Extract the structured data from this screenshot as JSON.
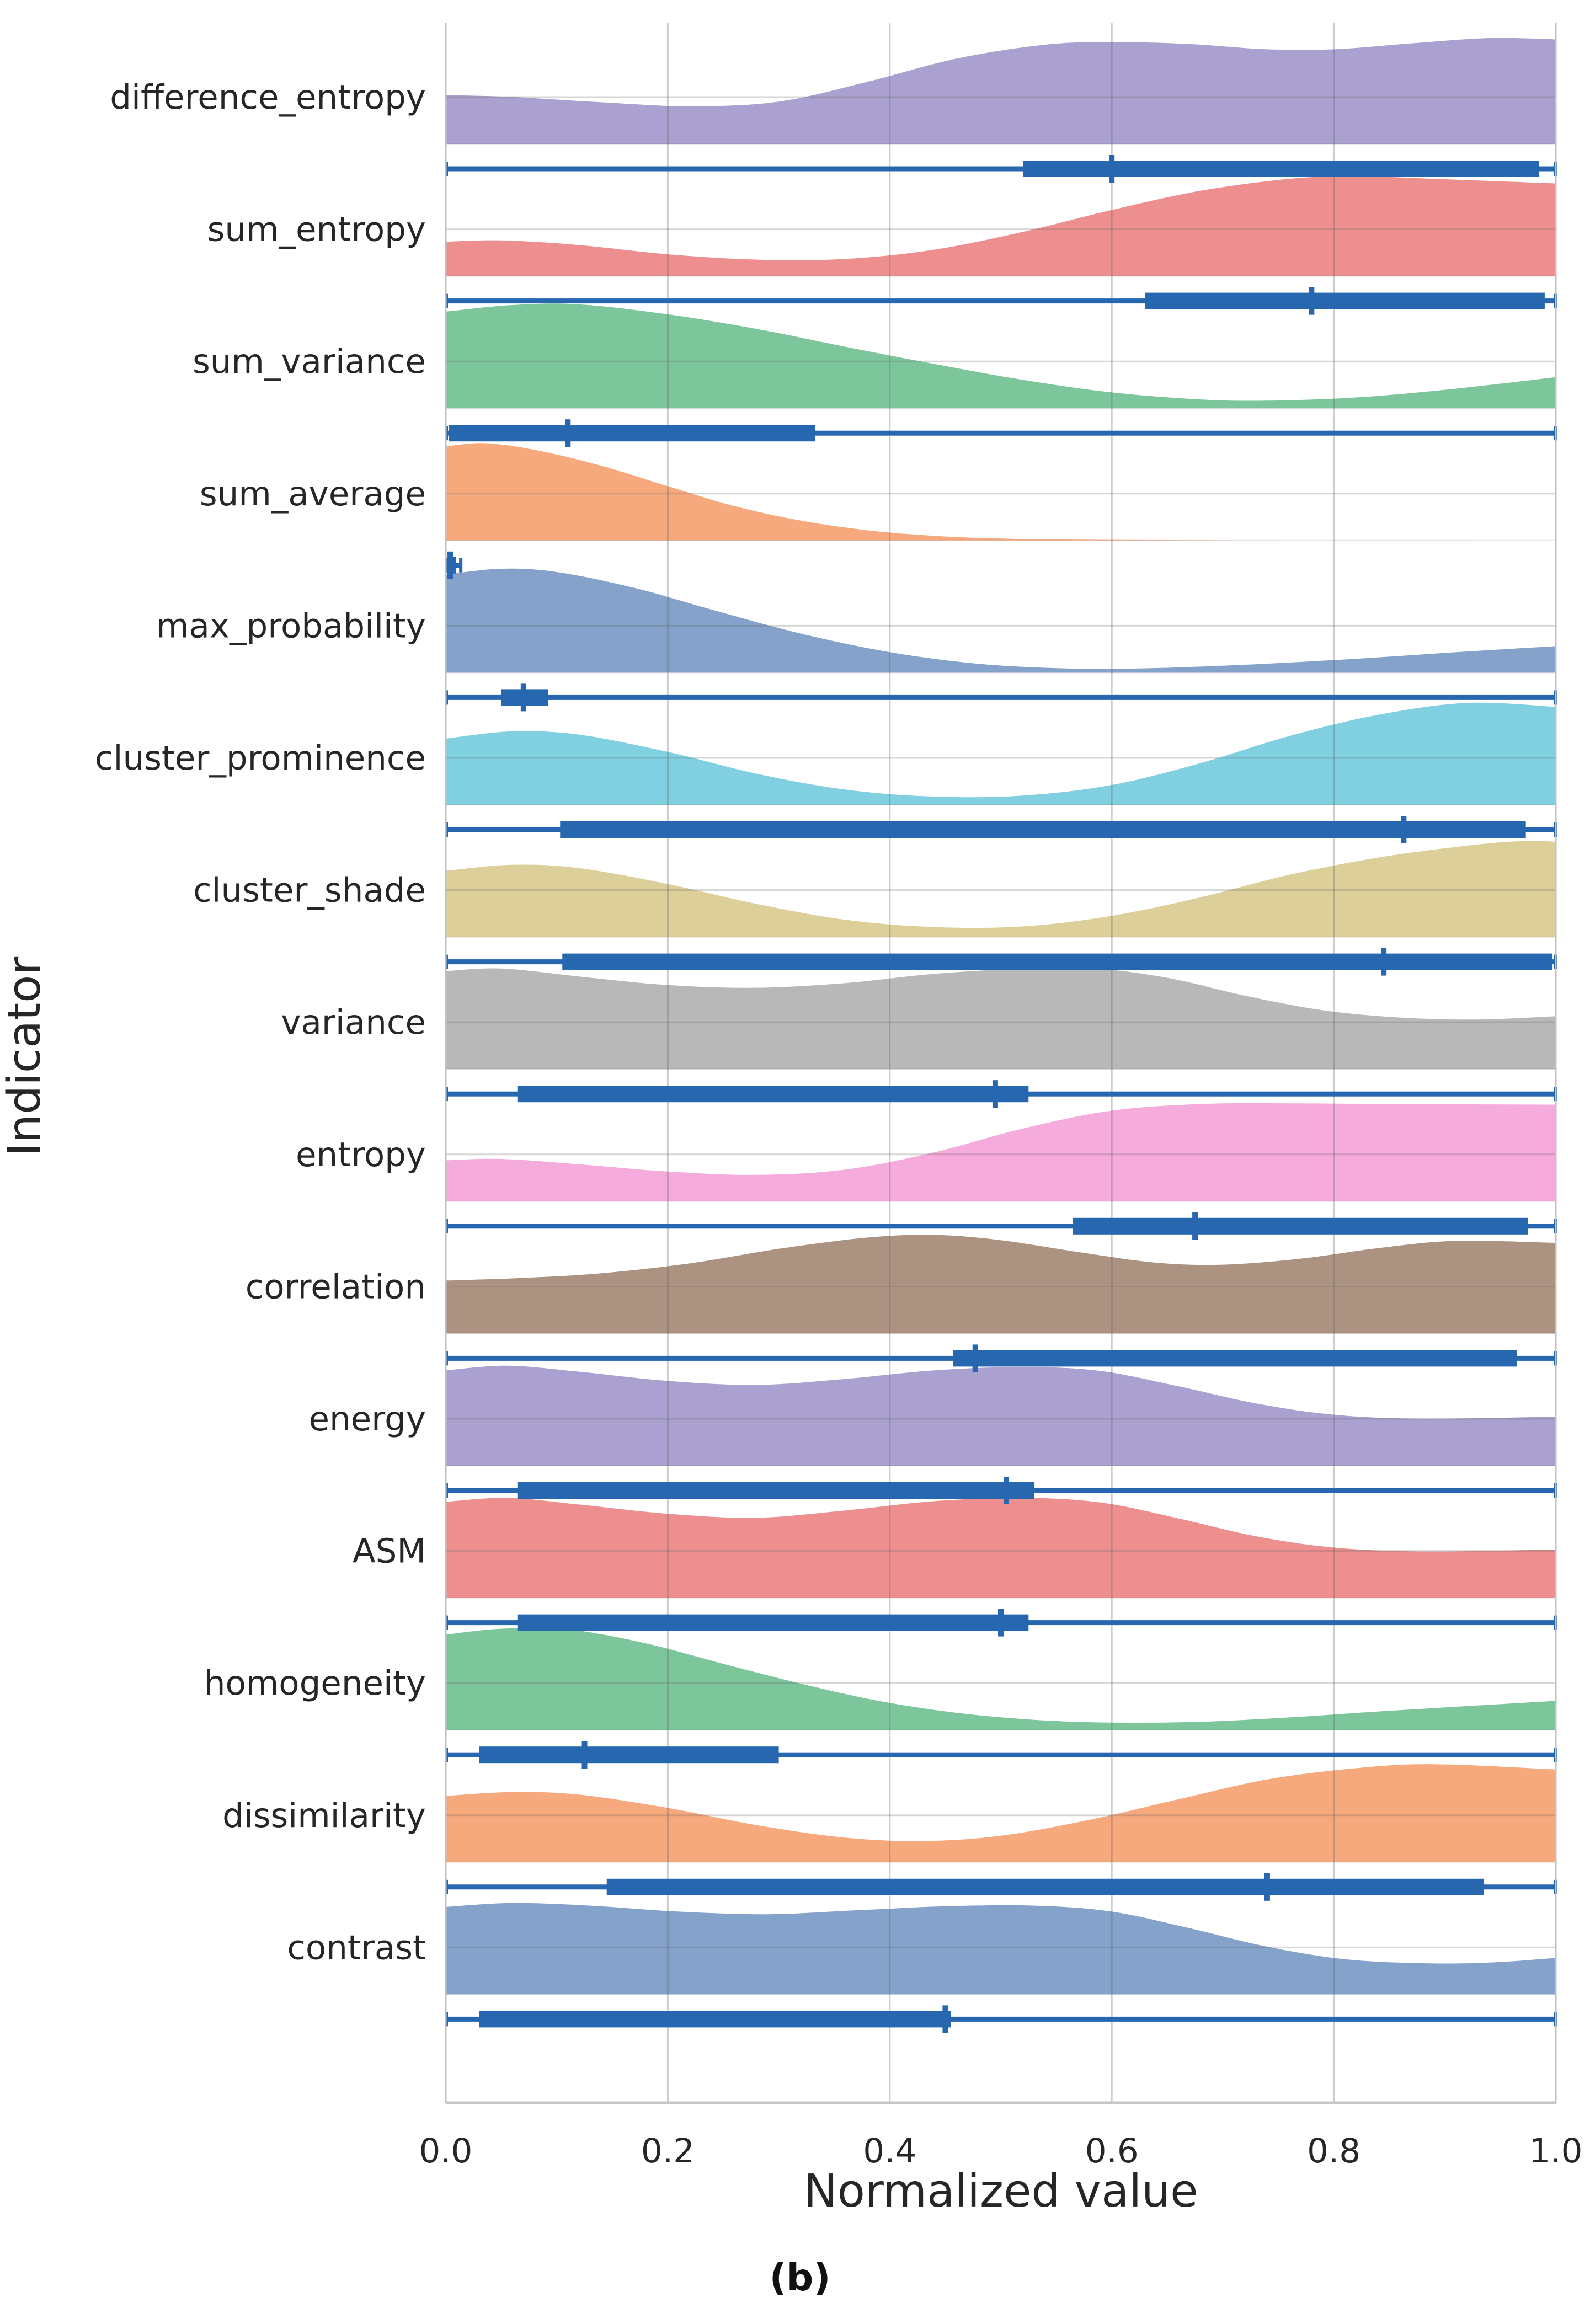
{
  "chart_data": {
    "type": "area",
    "variant": "ridgeline-with-range-bars",
    "title": "",
    "xlabel": "Normalized value",
    "ylabel": "Indicator",
    "caption": "(b)",
    "xlim": [
      0,
      1
    ],
    "x_ticks": [
      "0.0",
      "0.2",
      "0.4",
      "0.6",
      "0.8",
      "1.0"
    ],
    "x_tick_values": [
      0.0,
      0.2,
      0.4,
      0.6,
      0.8,
      1.0
    ],
    "grid": true,
    "legend": false,
    "box_color": "#2767b0",
    "rows": [
      {
        "label": "difference_entropy",
        "fill_color": "#aba1d0",
        "density": [
          [
            0,
            0.37
          ],
          [
            0.06,
            0.355
          ],
          [
            0.14,
            0.315
          ],
          [
            0.22,
            0.285
          ],
          [
            0.3,
            0.32
          ],
          [
            0.38,
            0.47
          ],
          [
            0.46,
            0.645
          ],
          [
            0.54,
            0.75
          ],
          [
            0.6,
            0.77
          ],
          [
            0.67,
            0.755
          ],
          [
            0.74,
            0.715
          ],
          [
            0.8,
            0.715
          ],
          [
            0.87,
            0.76
          ],
          [
            0.94,
            0.8
          ],
          [
            1,
            0.79
          ]
        ],
        "box": {
          "whisker_lo": 0.0,
          "q1": 0.52,
          "median": 0.6,
          "q3": 0.985,
          "whisker_hi": 1.0
        }
      },
      {
        "label": "sum_entropy",
        "fill_color": "#ee8f8f",
        "density": [
          [
            0,
            0.26
          ],
          [
            0.05,
            0.27
          ],
          [
            0.12,
            0.235
          ],
          [
            0.2,
            0.165
          ],
          [
            0.28,
            0.125
          ],
          [
            0.36,
            0.13
          ],
          [
            0.44,
            0.2
          ],
          [
            0.52,
            0.335
          ],
          [
            0.6,
            0.5
          ],
          [
            0.68,
            0.645
          ],
          [
            0.76,
            0.735
          ],
          [
            0.82,
            0.755
          ],
          [
            0.89,
            0.735
          ],
          [
            1,
            0.7
          ]
        ],
        "box": {
          "whisker_lo": 0.0,
          "q1": 0.63,
          "median": 0.78,
          "q3": 0.99,
          "whisker_hi": 1.0
        }
      },
      {
        "label": "sum_variance",
        "fill_color": "#7dc69c",
        "density": [
          [
            0,
            0.73
          ],
          [
            0.06,
            0.78
          ],
          [
            0.12,
            0.785
          ],
          [
            0.2,
            0.71
          ],
          [
            0.28,
            0.6
          ],
          [
            0.36,
            0.465
          ],
          [
            0.44,
            0.335
          ],
          [
            0.52,
            0.215
          ],
          [
            0.6,
            0.12
          ],
          [
            0.68,
            0.067
          ],
          [
            0.74,
            0.058
          ],
          [
            0.82,
            0.082
          ],
          [
            0.9,
            0.14
          ],
          [
            1,
            0.235
          ]
        ],
        "box": {
          "whisker_lo": 0.0,
          "q1": 0.003,
          "median": 0.11,
          "q3": 0.333,
          "whisker_hi": 1.0
        }
      },
      {
        "label": "sum_average",
        "fill_color": "#f7a97e",
        "density": [
          [
            0,
            0.71
          ],
          [
            0.035,
            0.735
          ],
          [
            0.08,
            0.685
          ],
          [
            0.14,
            0.565
          ],
          [
            0.2,
            0.41
          ],
          [
            0.26,
            0.26
          ],
          [
            0.32,
            0.15
          ],
          [
            0.38,
            0.077
          ],
          [
            0.44,
            0.035
          ],
          [
            0.5,
            0.015
          ],
          [
            0.58,
            0.006
          ],
          [
            0.68,
            0.002
          ],
          [
            0.78,
            0
          ],
          [
            1,
            0
          ]
        ],
        "box": {
          "whisker_lo": 0.0,
          "q1": 0.001,
          "median": 0.004,
          "q3": 0.009,
          "whisker_hi": 0.014
        }
      },
      {
        "label": "max_probability",
        "fill_color": "#84a2ca",
        "density": [
          [
            0,
            0.74
          ],
          [
            0.05,
            0.785
          ],
          [
            0.1,
            0.76
          ],
          [
            0.17,
            0.64
          ],
          [
            0.24,
            0.475
          ],
          [
            0.32,
            0.295
          ],
          [
            0.4,
            0.155
          ],
          [
            0.48,
            0.067
          ],
          [
            0.56,
            0.032
          ],
          [
            0.63,
            0.033
          ],
          [
            0.72,
            0.06
          ],
          [
            0.82,
            0.105
          ],
          [
            0.92,
            0.16
          ],
          [
            1,
            0.2
          ]
        ],
        "box": {
          "whisker_lo": 0.0,
          "q1": 0.05,
          "median": 0.07,
          "q3": 0.092,
          "whisker_hi": 1.0
        }
      },
      {
        "label": "cluster_prominence",
        "fill_color": "#80d0e1",
        "density": [
          [
            0,
            0.5
          ],
          [
            0.06,
            0.555
          ],
          [
            0.12,
            0.53
          ],
          [
            0.2,
            0.4
          ],
          [
            0.28,
            0.235
          ],
          [
            0.36,
            0.115
          ],
          [
            0.44,
            0.062
          ],
          [
            0.52,
            0.07
          ],
          [
            0.6,
            0.15
          ],
          [
            0.68,
            0.315
          ],
          [
            0.76,
            0.52
          ],
          [
            0.84,
            0.68
          ],
          [
            0.92,
            0.77
          ],
          [
            1,
            0.74
          ]
        ],
        "box": {
          "whisker_lo": 0.0,
          "q1": 0.103,
          "median": 0.863,
          "q3": 0.973,
          "whisker_hi": 1.0
        }
      },
      {
        "label": "cluster_shade",
        "fill_color": "#dccf9a",
        "density": [
          [
            0,
            0.5
          ],
          [
            0.06,
            0.545
          ],
          [
            0.12,
            0.52
          ],
          [
            0.2,
            0.4
          ],
          [
            0.28,
            0.25
          ],
          [
            0.36,
            0.13
          ],
          [
            0.44,
            0.075
          ],
          [
            0.52,
            0.08
          ],
          [
            0.6,
            0.16
          ],
          [
            0.68,
            0.3
          ],
          [
            0.76,
            0.47
          ],
          [
            0.84,
            0.6
          ],
          [
            0.92,
            0.69
          ],
          [
            0.97,
            0.725
          ],
          [
            1,
            0.72
          ]
        ],
        "box": {
          "whisker_lo": 0.0,
          "q1": 0.105,
          "median": 0.845,
          "q3": 0.997,
          "whisker_hi": 1.0
        }
      },
      {
        "label": "variance",
        "fill_color": "#b8b8b8",
        "density": [
          [
            0,
            0.74
          ],
          [
            0.05,
            0.76
          ],
          [
            0.12,
            0.7
          ],
          [
            0.2,
            0.635
          ],
          [
            0.28,
            0.615
          ],
          [
            0.36,
            0.65
          ],
          [
            0.44,
            0.72
          ],
          [
            0.52,
            0.76
          ],
          [
            0.58,
            0.765
          ],
          [
            0.65,
            0.69
          ],
          [
            0.72,
            0.555
          ],
          [
            0.79,
            0.445
          ],
          [
            0.86,
            0.39
          ],
          [
            0.93,
            0.375
          ],
          [
            1,
            0.4
          ]
        ],
        "box": {
          "whisker_lo": 0.0,
          "q1": 0.065,
          "median": 0.495,
          "q3": 0.525,
          "whisker_hi": 1.0
        }
      },
      {
        "label": "entropy",
        "fill_color": "#f5abdb",
        "density": [
          [
            0,
            0.31
          ],
          [
            0.05,
            0.32
          ],
          [
            0.12,
            0.28
          ],
          [
            0.2,
            0.225
          ],
          [
            0.28,
            0.2
          ],
          [
            0.36,
            0.24
          ],
          [
            0.44,
            0.37
          ],
          [
            0.52,
            0.55
          ],
          [
            0.6,
            0.685
          ],
          [
            0.68,
            0.735
          ],
          [
            0.76,
            0.74
          ],
          [
            0.85,
            0.735
          ],
          [
            1,
            0.73
          ]
        ],
        "box": {
          "whisker_lo": 0.0,
          "q1": 0.565,
          "median": 0.675,
          "q3": 0.975,
          "whisker_hi": 1.0
        }
      },
      {
        "label": "correlation",
        "fill_color": "#ac9381",
        "density": [
          [
            0,
            0.4
          ],
          [
            0.07,
            0.42
          ],
          [
            0.14,
            0.455
          ],
          [
            0.22,
            0.53
          ],
          [
            0.3,
            0.64
          ],
          [
            0.38,
            0.725
          ],
          [
            0.44,
            0.745
          ],
          [
            0.5,
            0.705
          ],
          [
            0.57,
            0.615
          ],
          [
            0.64,
            0.535
          ],
          [
            0.7,
            0.52
          ],
          [
            0.77,
            0.565
          ],
          [
            0.84,
            0.645
          ],
          [
            0.91,
            0.7
          ],
          [
            1,
            0.685
          ]
        ],
        "box": {
          "whisker_lo": 0.0,
          "q1": 0.457,
          "median": 0.477,
          "q3": 0.965,
          "whisker_hi": 1.0
        }
      },
      {
        "label": "energy",
        "fill_color": "#aba1d0",
        "density": [
          [
            0,
            0.72
          ],
          [
            0.055,
            0.755
          ],
          [
            0.12,
            0.71
          ],
          [
            0.2,
            0.64
          ],
          [
            0.28,
            0.61
          ],
          [
            0.36,
            0.655
          ],
          [
            0.44,
            0.72
          ],
          [
            0.52,
            0.745
          ],
          [
            0.59,
            0.715
          ],
          [
            0.66,
            0.6
          ],
          [
            0.73,
            0.47
          ],
          [
            0.8,
            0.385
          ],
          [
            0.88,
            0.355
          ],
          [
            1,
            0.37
          ]
        ],
        "box": {
          "whisker_lo": 0.0,
          "q1": 0.065,
          "median": 0.505,
          "q3": 0.53,
          "whisker_hi": 1.0
        }
      },
      {
        "label": "ASM",
        "fill_color": "#ee8f8f",
        "density": [
          [
            0,
            0.725
          ],
          [
            0.055,
            0.755
          ],
          [
            0.12,
            0.705
          ],
          [
            0.2,
            0.635
          ],
          [
            0.28,
            0.605
          ],
          [
            0.36,
            0.66
          ],
          [
            0.44,
            0.73
          ],
          [
            0.52,
            0.755
          ],
          [
            0.59,
            0.72
          ],
          [
            0.66,
            0.6
          ],
          [
            0.73,
            0.465
          ],
          [
            0.8,
            0.38
          ],
          [
            0.88,
            0.35
          ],
          [
            1,
            0.365
          ]
        ],
        "box": {
          "whisker_lo": 0.0,
          "q1": 0.065,
          "median": 0.5,
          "q3": 0.525,
          "whisker_hi": 1.0
        }
      },
      {
        "label": "homogeneity",
        "fill_color": "#7dc69c",
        "density": [
          [
            0,
            0.72
          ],
          [
            0.05,
            0.765
          ],
          [
            0.11,
            0.76
          ],
          [
            0.18,
            0.655
          ],
          [
            0.25,
            0.5
          ],
          [
            0.32,
            0.35
          ],
          [
            0.39,
            0.22
          ],
          [
            0.46,
            0.13
          ],
          [
            0.53,
            0.077
          ],
          [
            0.6,
            0.056
          ],
          [
            0.68,
            0.062
          ],
          [
            0.76,
            0.095
          ],
          [
            0.85,
            0.145
          ],
          [
            1,
            0.22
          ]
        ],
        "box": {
          "whisker_lo": 0.0,
          "q1": 0.03,
          "median": 0.125,
          "q3": 0.3,
          "whisker_hi": 1.0
        }
      },
      {
        "label": "dissimilarity",
        "fill_color": "#f7a97e",
        "density": [
          [
            0,
            0.5
          ],
          [
            0.06,
            0.53
          ],
          [
            0.12,
            0.51
          ],
          [
            0.2,
            0.41
          ],
          [
            0.28,
            0.28
          ],
          [
            0.36,
            0.185
          ],
          [
            0.43,
            0.16
          ],
          [
            0.5,
            0.2
          ],
          [
            0.58,
            0.32
          ],
          [
            0.66,
            0.475
          ],
          [
            0.74,
            0.625
          ],
          [
            0.82,
            0.71
          ],
          [
            0.89,
            0.74
          ],
          [
            1,
            0.7
          ]
        ],
        "box": {
          "whisker_lo": 0.0,
          "q1": 0.145,
          "median": 0.74,
          "q3": 0.935,
          "whisker_hi": 1.0
        }
      },
      {
        "label": "contrast",
        "fill_color": "#84a2ca",
        "density": [
          [
            0,
            0.66
          ],
          [
            0.06,
            0.69
          ],
          [
            0.13,
            0.67
          ],
          [
            0.21,
            0.625
          ],
          [
            0.29,
            0.605
          ],
          [
            0.37,
            0.635
          ],
          [
            0.45,
            0.665
          ],
          [
            0.53,
            0.67
          ],
          [
            0.6,
            0.625
          ],
          [
            0.67,
            0.5
          ],
          [
            0.74,
            0.36
          ],
          [
            0.81,
            0.265
          ],
          [
            0.88,
            0.235
          ],
          [
            0.94,
            0.24
          ],
          [
            1,
            0.275
          ]
        ],
        "box": {
          "whisker_lo": 0.0,
          "q1": 0.03,
          "median": 0.45,
          "q3": 0.455,
          "whisker_hi": 1.0
        }
      }
    ]
  },
  "colors": {
    "background": "#ffffff",
    "grid": "#cccccc",
    "spine": "#c2c2c2",
    "bottom_spine": "#c6c6c6",
    "text": "#262626",
    "box_line": "#2767b0"
  }
}
